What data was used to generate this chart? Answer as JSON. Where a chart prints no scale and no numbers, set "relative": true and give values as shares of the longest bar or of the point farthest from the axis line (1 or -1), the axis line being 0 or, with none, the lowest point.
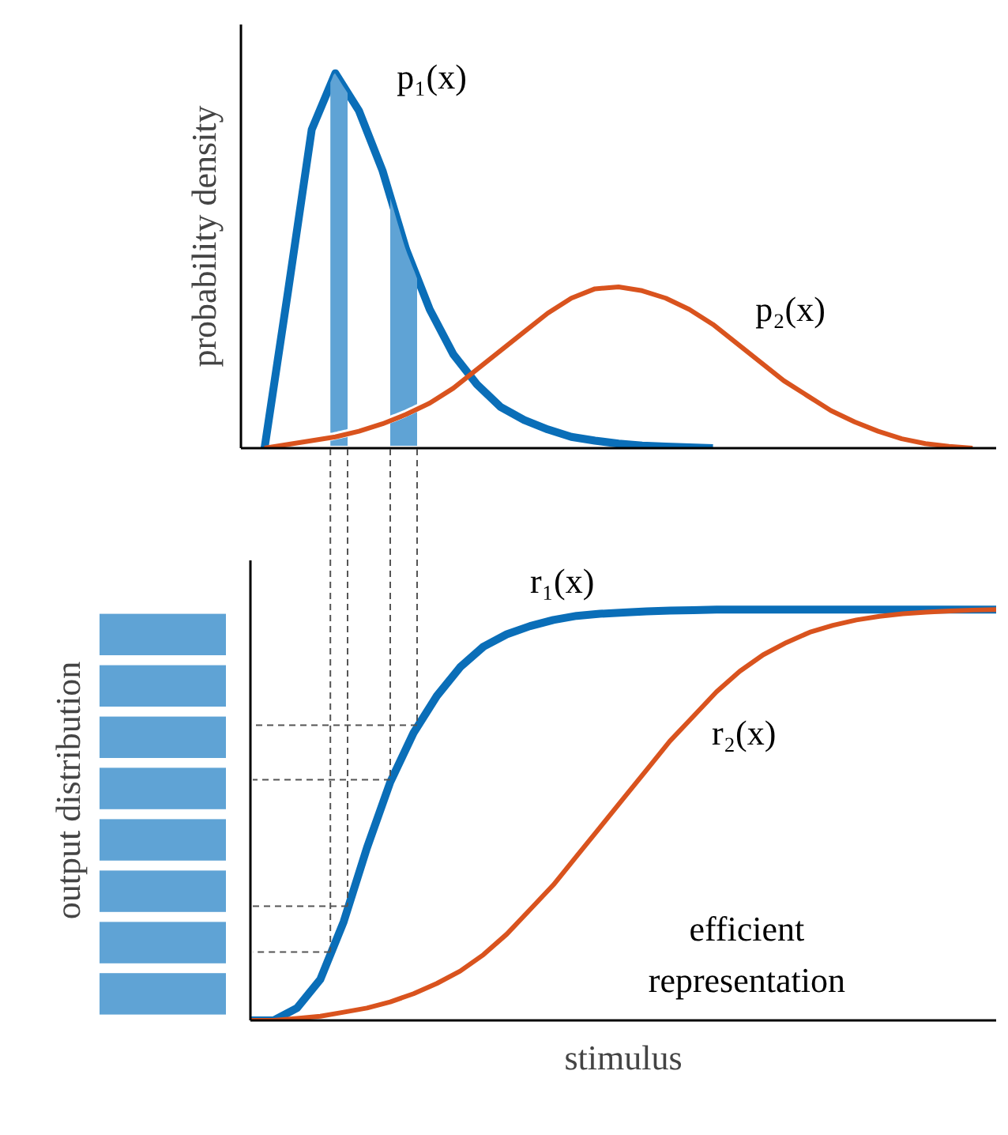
{
  "chart_data": [
    {
      "type": "line",
      "relative": true,
      "tick_labels": false,
      "ylabel": "probability density",
      "categories": [
        null,
        null,
        null,
        null,
        null,
        null,
        null,
        null,
        null,
        null,
        null,
        null,
        null,
        null,
        null,
        null,
        null,
        null,
        null,
        null,
        null,
        null,
        null,
        null,
        null,
        null,
        null,
        null,
        null,
        null,
        null,
        null,
        null
      ],
      "series": [
        {
          "name": "p₁(x)",
          "color": "#0a6eb8",
          "values": [
            null,
            0.0,
            0.42,
            0.85,
            1.0,
            0.9,
            0.74,
            0.53,
            0.37,
            0.25,
            0.17,
            0.11,
            0.075,
            0.05,
            0.03,
            0.02,
            0.012,
            0.007,
            0.004,
            0.002,
            0.0,
            null,
            null,
            null,
            null,
            null,
            null,
            null,
            null,
            null,
            null,
            null,
            null
          ]
        },
        {
          "name": "p₂(x)",
          "color": "#d9531e",
          "values": [
            null,
            0.0,
            0.01,
            0.02,
            0.03,
            0.045,
            0.065,
            0.09,
            0.12,
            0.16,
            0.21,
            0.26,
            0.31,
            0.36,
            0.4,
            0.425,
            0.43,
            0.42,
            0.4,
            0.37,
            0.33,
            0.28,
            0.23,
            0.18,
            0.14,
            0.1,
            0.07,
            0.045,
            0.025,
            0.012,
            0.005,
            0.0,
            null
          ]
        }
      ]
    },
    {
      "type": "line",
      "relative": true,
      "tick_labels": false,
      "ylabel": "output distribution",
      "xlabel": "stimulus",
      "annotations": [
        "efficient representation"
      ],
      "categories": [
        null,
        null,
        null,
        null,
        null,
        null,
        null,
        null,
        null,
        null,
        null,
        null,
        null,
        null,
        null,
        null,
        null,
        null,
        null,
        null,
        null,
        null,
        null,
        null,
        null,
        null,
        null,
        null,
        null,
        null,
        null,
        null,
        null
      ],
      "series": [
        {
          "name": "r₁(x)",
          "color": "#0a6eb8",
          "values": [
            0.0,
            0.0,
            0.03,
            0.1,
            0.24,
            0.42,
            0.58,
            0.7,
            0.79,
            0.86,
            0.91,
            0.94,
            0.96,
            0.975,
            0.985,
            0.99,
            0.993,
            0.996,
            0.998,
            0.999,
            1.0,
            1.0,
            1.0,
            1.0,
            1.0,
            1.0,
            1.0,
            1.0,
            1.0,
            1.0,
            1.0,
            1.0,
            1.0
          ]
        },
        {
          "name": "r₂(x)",
          "color": "#d9531e",
          "values": [
            0.0,
            0.0,
            0.005,
            0.01,
            0.02,
            0.03,
            0.045,
            0.065,
            0.09,
            0.12,
            0.16,
            0.21,
            0.27,
            0.33,
            0.4,
            0.47,
            0.54,
            0.61,
            0.68,
            0.74,
            0.8,
            0.85,
            0.89,
            0.92,
            0.945,
            0.962,
            0.975,
            0.984,
            0.99,
            0.994,
            0.997,
            0.999,
            1.0
          ]
        }
      ]
    }
  ]
}
